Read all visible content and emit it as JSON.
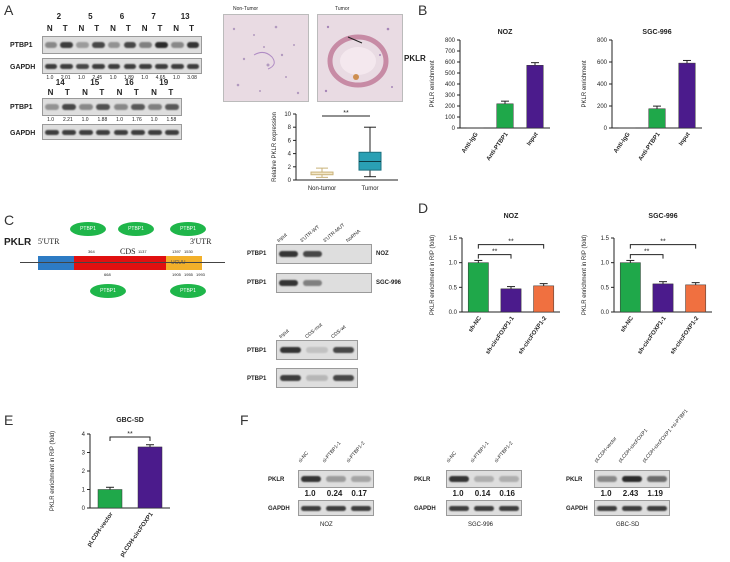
{
  "panels": {
    "A": "A",
    "B": "B",
    "C": "C",
    "D": "D",
    "E": "E",
    "F": "F"
  },
  "panelA": {
    "row1_samples": [
      "2",
      "5",
      "6",
      "7",
      "13"
    ],
    "row2_samples": [
      "14",
      "15",
      "16",
      "19"
    ],
    "nt": [
      "N",
      "T"
    ],
    "ptbp1": "PTBP1",
    "gapdh": "GAPDH",
    "row1_values": [
      "1.0",
      "2.01",
      "1.0",
      "2.45",
      "1.0",
      "1.89",
      "1.0",
      "4.65",
      "1.0",
      "3.08"
    ],
    "row2_values": [
      "1.0",
      "2.21",
      "1.0",
      "1.88",
      "1.0",
      "1.76",
      "1.0",
      "1.58"
    ],
    "histo_labels": [
      "Non-Tumor",
      "Tumor"
    ],
    "pklr": "PKLR",
    "box": {
      "significance": "**",
      "ylabel": "Relative PKLR expression",
      "yticks": [
        "0",
        "2",
        "4",
        "6",
        "8",
        "10"
      ],
      "categories": [
        "Non-tumor",
        "Tumor"
      ]
    }
  },
  "chart_data": [
    {
      "id": "B-NOZ",
      "type": "bar",
      "title": "NOZ",
      "categories": [
        "Anti-IgG",
        "Anti-PTBP1",
        "Input"
      ],
      "values": [
        2,
        220,
        570
      ],
      "ylabel": "PKLR enrichment",
      "ylim": [
        0,
        800
      ],
      "yticks": [
        "0",
        "100",
        "200",
        "300",
        "400",
        "500",
        "600",
        "700",
        "800"
      ],
      "colors": [
        "#b0b0b0",
        "#1fa84a",
        "#4b1b8c"
      ]
    },
    {
      "id": "B-SGC",
      "type": "bar",
      "title": "SGC-996",
      "categories": [
        "Anti-IgG",
        "Anti-PTBP1",
        "Input"
      ],
      "values": [
        2,
        175,
        590
      ],
      "ylabel": "PKLR enrichment",
      "ylim": [
        0,
        800
      ],
      "yticks": [
        "0",
        "200",
        "400",
        "600",
        "800"
      ],
      "colors": [
        "#b0b0b0",
        "#1fa84a",
        "#4b1b8c"
      ]
    },
    {
      "id": "D-NOZ",
      "type": "bar",
      "title": "NOZ",
      "categories": [
        "sh-NC",
        "sh-circFOXP1-1",
        "sh-circFOXP1-2"
      ],
      "values": [
        1.0,
        0.47,
        0.53
      ],
      "ylabel": "PKLR enrichment in RIP (fold)",
      "ylim": [
        0,
        1.5
      ],
      "yticks": [
        "0.0",
        "0.5",
        "1.0",
        "1.5"
      ],
      "significance": [
        "**",
        "**"
      ],
      "colors": [
        "#1fa84a",
        "#4b1b8c",
        "#f07040"
      ]
    },
    {
      "id": "D-SGC",
      "type": "bar",
      "title": "SGC-996",
      "categories": [
        "sh-NC",
        "sh-circFOXP1-1",
        "sh-circFOXP1-2"
      ],
      "values": [
        1.0,
        0.57,
        0.55
      ],
      "ylabel": "PKLR enrichment in RIP (fold)",
      "ylim": [
        0,
        1.5
      ],
      "yticks": [
        "0.0",
        "0.5",
        "1.0",
        "1.5"
      ],
      "significance": [
        "**",
        "**"
      ],
      "colors": [
        "#1fa84a",
        "#4b1b8c",
        "#f07040"
      ]
    },
    {
      "id": "E-GBC",
      "type": "bar",
      "title": "GBC-SD",
      "categories": [
        "pLCDH-vector",
        "pLCDH-circFOXP1"
      ],
      "values": [
        1.0,
        3.3
      ],
      "ylabel": "PKLR enrichment in RIP (fold)",
      "ylim": [
        0,
        4
      ],
      "yticks": [
        "0",
        "1",
        "2",
        "3",
        "4"
      ],
      "significance": [
        "**"
      ],
      "colors": [
        "#1fa84a",
        "#4b1b8c"
      ]
    }
  ],
  "panelC": {
    "gene": "PKLR",
    "utr5": "5'UTR",
    "cds": "CDS",
    "utr3": "3'UTR",
    "ptbp1": "PTBP1",
    "positions_top": [
      "364",
      "1137",
      "1397",
      "1530"
    ],
    "positions_bottom": [
      "668",
      "1905",
      "1955",
      "1993"
    ],
    "rip_cols": [
      "Input",
      "3'UTR-WT",
      "3'UTR-MUT",
      "NoRNA"
    ],
    "rip_rows": [
      "PTBP1",
      "PTBP1"
    ],
    "cell_lines": [
      "NOZ",
      "SGC-996"
    ],
    "cds_cols": [
      "Input",
      "CDS-mut",
      "CDS-wt"
    ],
    "cds_rows": [
      "PTBP1",
      "PTBP1"
    ]
  },
  "panelF": {
    "pklr": "PKLR",
    "gapdh": "GAPDH",
    "noz": {
      "lanes": [
        "si-NC",
        "si-PTBP1-1",
        "si-PTBP1-2"
      ],
      "values": [
        "1.0",
        "0.24",
        "0.17"
      ],
      "cell": "NOZ"
    },
    "sgc": {
      "lanes": [
        "si-NC",
        "si-PTBP1-1",
        "si-PTBP1-2"
      ],
      "values": [
        "1.0",
        "0.14",
        "0.16"
      ],
      "cell": "SGC-996"
    },
    "gbc": {
      "lanes": [
        "pLCDH-vector",
        "pLCDH-circFOXP1",
        "pLCDH-circFOXP1 +si-PTBP1"
      ],
      "values": [
        "1.0",
        "2.43",
        "1.19"
      ],
      "cell": "GBC-SD"
    }
  }
}
